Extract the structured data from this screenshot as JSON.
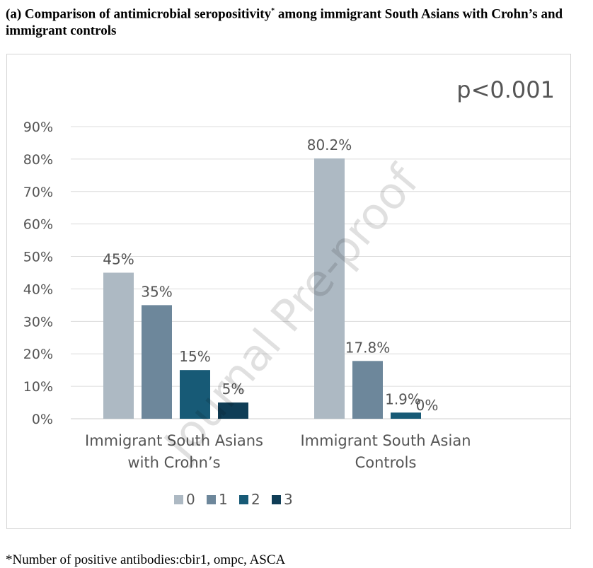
{
  "title_prefix": "(a) Comparison of antimicrobial seropositivity",
  "title_sup": "*",
  "title_rest": " among immigrant South Asians with Crohn’s and immigrant controls",
  "annotation": "p<0.001",
  "watermark": "Journal Pre-proof",
  "footnote": "*Number of positive antibodies:cbir1, ompc, ASCA",
  "chart_data": {
    "type": "bar",
    "categories": [
      [
        "Immigrant South Asians",
        "with Crohn’s"
      ],
      [
        "Immigrant South Asian",
        "Controls"
      ]
    ],
    "series": [
      {
        "name": "0",
        "color": "#adb9c3",
        "values": [
          45,
          80.2
        ],
        "labels": [
          "45%",
          "80.2%"
        ]
      },
      {
        "name": "1",
        "color": "#6d879b",
        "values": [
          35,
          17.8
        ],
        "labels": [
          "35%",
          "17.8%"
        ]
      },
      {
        "name": "2",
        "color": "#175a76",
        "values": [
          15,
          1.9
        ],
        "labels": [
          "15%",
          "1.9%"
        ]
      },
      {
        "name": "3",
        "color": "#0f3d56",
        "values": [
          5,
          0
        ],
        "labels": [
          "5%",
          "0%"
        ]
      }
    ],
    "yticks": [
      "0%",
      "10%",
      "20%",
      "30%",
      "40%",
      "50%",
      "60%",
      "70%",
      "80%",
      "90%"
    ],
    "ylim": [
      0,
      90
    ],
    "grid": true,
    "legend": "bottom"
  }
}
